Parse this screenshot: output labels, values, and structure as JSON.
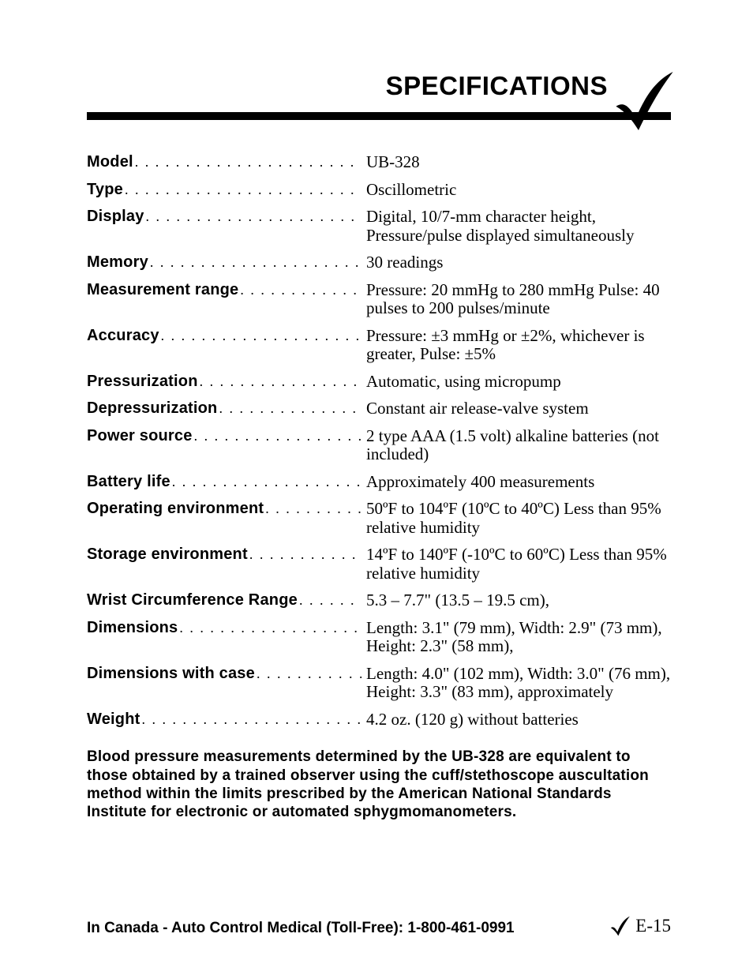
{
  "header": {
    "title": "SPECIFICATIONS"
  },
  "specs": [
    {
      "label": "Model",
      "value": "UB-328"
    },
    {
      "label": "Type",
      "value": "Oscillometric"
    },
    {
      "label": "Display",
      "value": "Digital, 10/7-mm character height, Pressure/pulse displayed simultaneously"
    },
    {
      "label": "Memory",
      "value": "30 readings"
    },
    {
      "label": "Measurement range",
      "value": "Pressure: 20 mmHg to 280 mmHg Pulse: 40 pulses to 200 pulses/minute"
    },
    {
      "label": "Accuracy",
      "value": "Pressure: ±3 mmHg or ±2%, whichever is greater, Pulse: ±5%"
    },
    {
      "label": "Pressurization",
      "value": "Automatic, using micropump"
    },
    {
      "label": "Depressurization",
      "value": "Constant air release-valve system"
    },
    {
      "label": "Power source",
      "value": "2 type AAA (1.5 volt) alkaline batteries (not included)"
    },
    {
      "label": "Battery life",
      "value": "Approximately 400 measurements"
    },
    {
      "label": "Operating environment",
      "value": "50ºF to 104ºF (10ºC to 40ºC) Less than 95% relative humidity"
    },
    {
      "label": "Storage environment",
      "value": "14ºF to 140ºF (-10ºC to 60ºC) Less than 95% relative humidity"
    },
    {
      "label": "Wrist Circumference Range",
      "value": "5.3 – 7.7\" (13.5 – 19.5 cm),"
    },
    {
      "label": "Dimensions",
      "value": "Length: 3.1\" (79 mm), Width: 2.9\" (73 mm), Height: 2.3\" (58 mm),"
    },
    {
      "label": "Dimensions with case",
      "value": "Length: 4.0\" (102 mm), Width: 3.0\" (76 mm), Height: 3.3\" (83 mm), approximately"
    },
    {
      "label": "Weight",
      "value": "4.2 oz. (120 g) without batteries"
    }
  ],
  "disclaimer": "Blood pressure measurements determined by the UB-328 are equivalent to those obtained by a trained observer using the cuff/stethoscope auscultation method within the limits prescribed by the American National Standards Institute for electronic or automated sphygmomanometers.",
  "footer": {
    "left": "In Canada - Auto Control Medical (Toll-Free): 1-800-461-0991",
    "page": "E-15"
  },
  "colors": {
    "text": "#000000",
    "background": "#ffffff",
    "rule": "#000000"
  }
}
